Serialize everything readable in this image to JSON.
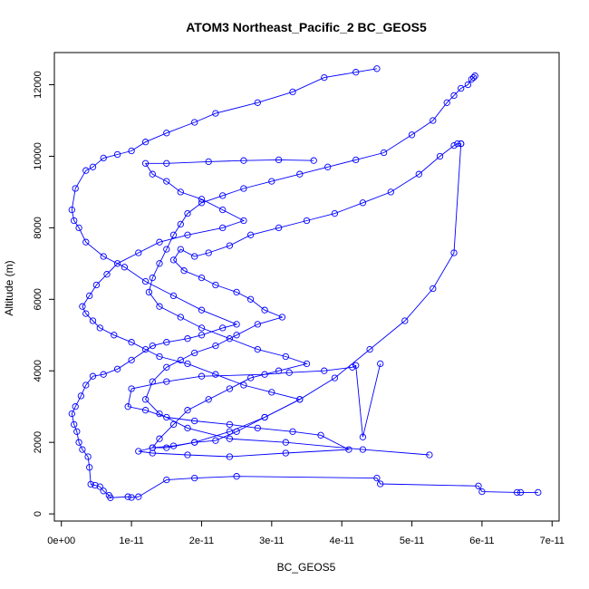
{
  "chart_data": {
    "type": "line",
    "title": "ATOM3 Northeast_Pacific_2 BC_GEOS5",
    "xlabel": "BC_GEOS5",
    "ylabel": "Altitude (m)",
    "xlim": [
      -1e-12,
      7.1e-11
    ],
    "ylim": [
      -200,
      12900
    ],
    "x_ticks": [
      0,
      1e-11,
      2e-11,
      3e-11,
      4e-11,
      5e-11,
      6e-11,
      7e-11
    ],
    "x_tick_labels": [
      "0e+00",
      "1e-11",
      "2e-11",
      "3e-11",
      "4e-11",
      "5e-11",
      "6e-11",
      "7e-11"
    ],
    "y_ticks": [
      0,
      2000,
      4000,
      6000,
      8000,
      10000,
      12000
    ],
    "y_tick_labels": [
      "0",
      "2000",
      "4000",
      "6000",
      "8000",
      "10000",
      "12000"
    ],
    "marker": "open-circle",
    "color": "#0000ff",
    "series": [
      {
        "x": [
          6.8e-11,
          6.55e-11,
          6.5e-11,
          6e-11,
          5.95e-11,
          4.55e-11,
          4.5e-11,
          2.5e-11,
          1.9e-11,
          1.5e-11,
          1.1e-11,
          1e-11,
          9.5e-12,
          7e-12,
          6.8e-12,
          6e-12,
          5.5e-12,
          4.8e-12,
          4.2e-12,
          4e-12,
          3.8e-12,
          3e-12,
          2.5e-12,
          2.2e-12,
          1.8e-12,
          1.5e-12,
          2e-12,
          2.8e-12,
          3.5e-12,
          4.5e-12,
          6e-12,
          8e-12,
          1e-11,
          1.3e-11,
          1.5e-11,
          1.8e-11,
          2e-11,
          2.3e-11,
          2.5e-11,
          2e-11,
          1.6e-11,
          1.2e-11,
          9e-12,
          6e-12,
          3.5e-12,
          2.5e-12,
          1.8e-12,
          1.5e-12,
          2e-12,
          3.5e-12,
          4.5e-12,
          6e-12,
          8e-12,
          1e-11,
          1.2e-11,
          1.5e-11,
          1.9e-11,
          2.2e-11,
          2.8e-11,
          3.3e-11,
          3.75e-11,
          4.2e-11,
          4.5e-11
        ],
        "y": [
          600,
          600,
          600,
          620,
          780,
          840,
          1000,
          1050,
          1000,
          950,
          480,
          460,
          480,
          450,
          520,
          640,
          760,
          800,
          830,
          1300,
          1600,
          1800,
          2000,
          2300,
          2500,
          2800,
          3000,
          3300,
          3600,
          3850,
          3900,
          4050,
          4300,
          4700,
          4800,
          4900,
          5000,
          5200,
          5300,
          5700,
          6100,
          6500,
          6900,
          7200,
          7600,
          8000,
          8200,
          8500,
          9100,
          9600,
          9700,
          9950,
          10050,
          10150,
          10400,
          10650,
          10950,
          11200,
          11500,
          11800,
          12200,
          12350,
          12450
        ]
      },
      {
        "x": [
          4.55e-11,
          4.3e-11,
          4.2e-11,
          4.15e-11,
          3.75e-11,
          3.25e-11,
          2.9e-11,
          2e-11,
          1.5e-11,
          1e-11,
          9.5e-12,
          1.2e-11,
          1.5e-11,
          1.9e-11,
          2.4e-11,
          2.8e-11,
          3.3e-11,
          3.7e-11,
          4.1e-11,
          3.2e-11,
          2.4e-11,
          1.8e-11,
          1.3e-11,
          1.1e-11,
          1.3e-11,
          1.6e-11,
          1.9e-11,
          2.2e-11,
          2.5e-11,
          2.9e-11,
          3.4e-11,
          3e-11,
          2.6e-11,
          2.2e-11,
          1.8e-11,
          1.4e-11,
          1.2e-11,
          1e-11,
          7.5e-12,
          5.5e-12,
          4.5e-12,
          3.5e-12,
          3e-12,
          4e-12,
          5e-12,
          6.5e-12,
          8e-12,
          1.1e-11,
          1.4e-11,
          1.8e-11,
          2.3e-11,
          2.6e-11,
          2.3e-11,
          2e-11,
          1.7e-11,
          1.5e-11,
          1.3e-11,
          1.2e-11,
          1.5e-11,
          2.1e-11,
          2.6e-11,
          3.1e-11,
          3.6e-11
        ],
        "y": [
          4200,
          2150,
          4150,
          4100,
          4000,
          3950,
          3900,
          3850,
          3700,
          3500,
          3000,
          2900,
          2700,
          2600,
          2500,
          2400,
          2300,
          2200,
          1800,
          1700,
          1600,
          1650,
          1700,
          1750,
          1850,
          1900,
          2000,
          2050,
          2300,
          2700,
          3200,
          3400,
          3600,
          3900,
          4200,
          4400,
          4600,
          4800,
          5000,
          5200,
          5400,
          5600,
          5800,
          6100,
          6400,
          6700,
          7000,
          7300,
          7600,
          7800,
          8000,
          8200,
          8500,
          8800,
          9000,
          9300,
          9500,
          9800,
          9800,
          9850,
          9880,
          9900,
          9880
        ]
      },
      {
        "x": [
          5.9e-11,
          5.88e-11,
          5.85e-11,
          5.8e-11,
          5.7e-11,
          5.6e-11,
          5.5e-11,
          5.3e-11,
          5e-11,
          4.6e-11,
          4.2e-11,
          3.8e-11,
          3.4e-11,
          3e-11,
          2.6e-11,
          2.3e-11,
          2e-11,
          1.8e-11,
          1.7e-11,
          1.6e-11,
          1.5e-11,
          1.4e-11,
          1.3e-11,
          1.25e-11,
          1.4e-11,
          1.7e-11,
          2e-11,
          2.4e-11,
          2.8e-11,
          3.2e-11,
          3.5e-11,
          3.1e-11,
          2.7e-11,
          2.4e-11,
          2.1e-11,
          1.8e-11,
          1.6e-11,
          1.4e-11,
          1.3e-11,
          1.5e-11,
          1.9e-11,
          2.4e-11,
          2.9e-11,
          3.4e-11,
          3.9e-11,
          4.4e-11,
          4.9e-11,
          5.3e-11,
          5.6e-11,
          5.7e-11
        ],
        "y": [
          12250,
          12200,
          12150,
          12000,
          11900,
          11700,
          11500,
          11000,
          10600,
          10100,
          9900,
          9700,
          9500,
          9300,
          9100,
          8900,
          8700,
          8400,
          8100,
          7800,
          7400,
          7000,
          6600,
          6200,
          5800,
          5500,
          5200,
          4900,
          4600,
          4400,
          4200,
          4000,
          3800,
          3500,
          3200,
          2900,
          2500,
          2100,
          1850,
          1850,
          2000,
          2300,
          2700,
          3200,
          3800,
          4600,
          5400,
          6300,
          7300,
          10350
        ]
      },
      {
        "x": [
          5.7e-11,
          5.65e-11,
          5.6e-11,
          5.4e-11,
          5.1e-11,
          4.7e-11,
          4.3e-11,
          3.9e-11,
          3.5e-11,
          3.1e-11,
          2.7e-11,
          2.4e-11,
          2.1e-11,
          1.9e-11,
          1.7e-11,
          1.6e-11,
          1.75e-11,
          2e-11,
          2.2e-11,
          2.5e-11,
          2.7e-11,
          2.9e-11,
          3.15e-11,
          2.8e-11,
          2.5e-11,
          2.2e-11,
          1.9e-11,
          1.7e-11,
          1.5e-11,
          1.3e-11,
          1.2e-11,
          1.4e-11,
          1.8e-11,
          2.4e-11,
          3.2e-11,
          4.3e-11,
          5.25e-11
        ],
        "y": [
          10350,
          10350,
          10300,
          10000,
          9500,
          9000,
          8700,
          8400,
          8200,
          8000,
          7800,
          7500,
          7300,
          7200,
          7400,
          7100,
          6800,
          6600,
          6400,
          6200,
          6000,
          5700,
          5500,
          5300,
          5000,
          4700,
          4500,
          4300,
          4100,
          3700,
          3200,
          2800,
          2400,
          2100,
          2000,
          1800,
          1650
        ]
      }
    ]
  }
}
